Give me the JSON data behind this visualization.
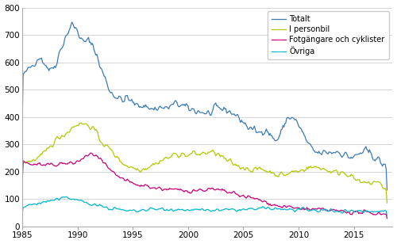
{
  "title": "",
  "xlabel": "",
  "ylabel": "",
  "xlim": [
    1985.0,
    2018.5
  ],
  "ylim": [
    0,
    800
  ],
  "yticks": [
    0,
    100,
    200,
    300,
    400,
    500,
    600,
    700,
    800
  ],
  "xticks": [
    1985,
    1990,
    1995,
    2000,
    2005,
    2010,
    2015
  ],
  "colors": {
    "Totalt": "#3d7ab5",
    "I personbil": "#b5c800",
    "Fotgangare och cyklister": "#cc0077",
    "Ovriga": "#00b8cc"
  },
  "legend_labels": [
    "Totalt",
    "I personbil",
    "Fotgängare och cyklister",
    "Övriga"
  ],
  "background_color": "#ffffff",
  "grid_color": "#d0d0d0"
}
